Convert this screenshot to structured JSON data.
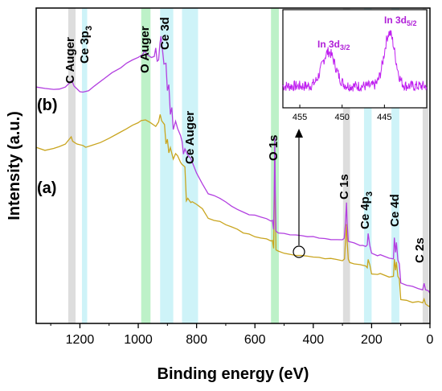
{
  "chart_data": {
    "type": "line",
    "x_axis": {
      "label": "Binding energy (eV)",
      "range": [
        1350,
        0
      ],
      "ticks": [
        1200,
        1000,
        800,
        600,
        400,
        200,
        0
      ],
      "tick_labels": [
        "1200",
        "1000",
        "800",
        "600",
        "400",
        "200",
        "0"
      ],
      "reversed": true
    },
    "y_axis": {
      "label": "Intensity (a.u.)",
      "range": [
        0,
        100
      ],
      "ticks_shown": false
    },
    "series": [
      {
        "name": "(a)",
        "color": "#c9a51f",
        "points": [
          [
            1350,
            56
          ],
          [
            1320,
            55
          ],
          [
            1290,
            55.5
          ],
          [
            1270,
            56
          ],
          [
            1250,
            57
          ],
          [
            1240,
            58
          ],
          [
            1230,
            59
          ],
          [
            1225,
            57.8
          ],
          [
            1210,
            57
          ],
          [
            1190,
            56.4
          ],
          [
            1180,
            56
          ],
          [
            1160,
            56.3
          ],
          [
            1130,
            57.2
          ],
          [
            1100,
            58.6
          ],
          [
            1070,
            60.2
          ],
          [
            1040,
            61.8
          ],
          [
            1020,
            62.8
          ],
          [
            1000,
            63.6
          ],
          [
            990,
            64.2
          ],
          [
            975,
            64.4
          ],
          [
            960,
            63.6
          ],
          [
            940,
            62.6
          ],
          [
            930,
            63.8
          ],
          [
            925,
            66.4
          ],
          [
            920,
            64.2
          ],
          [
            910,
            63.2
          ],
          [
            905,
            56.8
          ],
          [
            900,
            58.4
          ],
          [
            895,
            54.2
          ],
          [
            890,
            55.6
          ],
          [
            880,
            52.2
          ],
          [
            872,
            53.8
          ],
          [
            865,
            53.2
          ],
          [
            855,
            51.2
          ],
          [
            850,
            50.4
          ],
          [
            840,
            49.8
          ],
          [
            835,
            38.8
          ],
          [
            830,
            39.6
          ],
          [
            820,
            38.2
          ],
          [
            815,
            38.6
          ],
          [
            800,
            37.8
          ],
          [
            780,
            36.4
          ],
          [
            760,
            33.2
          ],
          [
            740,
            32.8
          ],
          [
            720,
            32.2
          ],
          [
            700,
            31.4
          ],
          [
            680,
            30.6
          ],
          [
            660,
            29.8
          ],
          [
            640,
            28.8
          ],
          [
            620,
            28.2
          ],
          [
            600,
            27.6
          ],
          [
            580,
            27
          ],
          [
            560,
            26.8
          ],
          [
            545,
            26.2
          ],
          [
            540,
            26.4
          ],
          [
            536,
            23.8
          ],
          [
            534,
            37
          ],
          [
            532,
            51.8
          ],
          [
            530,
            37
          ],
          [
            528,
            23.2
          ],
          [
            520,
            22.8
          ],
          [
            500,
            22.4
          ],
          [
            480,
            21.8
          ],
          [
            460,
            21.6
          ],
          [
            440,
            21.6
          ],
          [
            420,
            21.2
          ],
          [
            400,
            21.2
          ],
          [
            380,
            20.8
          ],
          [
            360,
            20.6
          ],
          [
            340,
            20.6
          ],
          [
            320,
            20.2
          ],
          [
            300,
            20
          ],
          [
            293,
            20.6
          ],
          [
            290,
            25.4
          ],
          [
            286,
            31.6
          ],
          [
            284,
            26.2
          ],
          [
            280,
            20.2
          ],
          [
            275,
            19.4
          ],
          [
            260,
            19
          ],
          [
            240,
            18.6
          ],
          [
            230,
            18.6
          ],
          [
            220,
            18.2
          ],
          [
            215,
            17.8
          ],
          [
            212,
            20.4
          ],
          [
            206,
            18.4
          ],
          [
            200,
            15.8
          ],
          [
            180,
            15.4
          ],
          [
            170,
            15.8
          ],
          [
            140,
            14.6
          ],
          [
            125,
            14.8
          ],
          [
            122,
            20.4
          ],
          [
            118,
            16.8
          ],
          [
            115,
            19.6
          ],
          [
            110,
            14.8
          ],
          [
            105,
            14.2
          ],
          [
            100,
            7.6
          ],
          [
            80,
            7.2
          ],
          [
            60,
            6.8
          ],
          [
            40,
            6.8
          ],
          [
            25,
            6.4
          ],
          [
            20,
            7.8
          ],
          [
            15,
            6.2
          ],
          [
            5,
            5.6
          ],
          [
            0,
            5.4
          ]
        ]
      },
      {
        "name": "(b)",
        "color": "#b23fe0",
        "points": [
          [
            1350,
            74.8
          ],
          [
            1320,
            74.4
          ],
          [
            1290,
            74.2
          ],
          [
            1270,
            74.4
          ],
          [
            1250,
            74.8
          ],
          [
            1235,
            76.2
          ],
          [
            1228,
            76.8
          ],
          [
            1220,
            75.2
          ],
          [
            1200,
            73.6
          ],
          [
            1190,
            73.4
          ],
          [
            1170,
            73.8
          ],
          [
            1150,
            75.2
          ],
          [
            1120,
            77.4
          ],
          [
            1090,
            79.6
          ],
          [
            1060,
            81.2
          ],
          [
            1040,
            82.4
          ],
          [
            1020,
            83.6
          ],
          [
            1000,
            84.4
          ],
          [
            985,
            85.2
          ],
          [
            978,
            86.6
          ],
          [
            970,
            85.2
          ],
          [
            955,
            84.2
          ],
          [
            945,
            84.8
          ],
          [
            940,
            87.2
          ],
          [
            935,
            83.2
          ],
          [
            930,
            83.6
          ],
          [
            926,
            88.6
          ],
          [
            922,
            91
          ],
          [
            918,
            87.6
          ],
          [
            912,
            82.4
          ],
          [
            905,
            82.6
          ],
          [
            900,
            73.8
          ],
          [
            895,
            75.6
          ],
          [
            890,
            66.4
          ],
          [
            885,
            68.4
          ],
          [
            880,
            61.4
          ],
          [
            872,
            64.2
          ],
          [
            865,
            61.8
          ],
          [
            855,
            59.4
          ],
          [
            850,
            57.8
          ],
          [
            845,
            53.8
          ],
          [
            840,
            55.2
          ],
          [
            830,
            53.4
          ],
          [
            820,
            52.4
          ],
          [
            800,
            47.6
          ],
          [
            780,
            44.2
          ],
          [
            760,
            41.2
          ],
          [
            740,
            40.4
          ],
          [
            720,
            39.8
          ],
          [
            700,
            38.4
          ],
          [
            680,
            37.2
          ],
          [
            660,
            36.2
          ],
          [
            640,
            35.2
          ],
          [
            620,
            34.6
          ],
          [
            600,
            34.2
          ],
          [
            580,
            33.8
          ],
          [
            560,
            33.2
          ],
          [
            545,
            32.4
          ],
          [
            540,
            32.6
          ],
          [
            536,
            29.8
          ],
          [
            534,
            41
          ],
          [
            532,
            59.4
          ],
          [
            530,
            41
          ],
          [
            528,
            29.4
          ],
          [
            520,
            28.8
          ],
          [
            500,
            28.4
          ],
          [
            480,
            28.2
          ],
          [
            460,
            28
          ],
          [
            440,
            27.8
          ],
          [
            420,
            27.6
          ],
          [
            400,
            27.4
          ],
          [
            380,
            27.2
          ],
          [
            360,
            26.8
          ],
          [
            340,
            26.6
          ],
          [
            320,
            26.6
          ],
          [
            300,
            26.4
          ],
          [
            294,
            27
          ],
          [
            290,
            31.2
          ],
          [
            286,
            38.2
          ],
          [
            284,
            32.2
          ],
          [
            280,
            26.2
          ],
          [
            275,
            25.8
          ],
          [
            260,
            25.4
          ],
          [
            240,
            24.8
          ],
          [
            230,
            24.6
          ],
          [
            220,
            24.4
          ],
          [
            215,
            24.8
          ],
          [
            212,
            28.4
          ],
          [
            206,
            24.8
          ],
          [
            200,
            22.2
          ],
          [
            180,
            21.6
          ],
          [
            170,
            21.8
          ],
          [
            140,
            20.8
          ],
          [
            125,
            20.6
          ],
          [
            122,
            27.2
          ],
          [
            118,
            22.6
          ],
          [
            115,
            25.6
          ],
          [
            110,
            20.2
          ],
          [
            105,
            18.8
          ],
          [
            100,
            12.8
          ],
          [
            80,
            12.2
          ],
          [
            60,
            11.6
          ],
          [
            40,
            11.2
          ],
          [
            25,
            10.8
          ],
          [
            20,
            12.6
          ],
          [
            15,
            10.6
          ],
          [
            5,
            10.2
          ],
          [
            0,
            9.6
          ]
        ]
      }
    ],
    "bands": [
      {
        "label": "C Auger",
        "from": 1240,
        "to": 1215,
        "color": "#d9d9d9"
      },
      {
        "label": "Ce 3p3",
        "from": 1193,
        "to": 1175,
        "color": "#c9f2f7"
      },
      {
        "label": "O Auger",
        "from": 990,
        "to": 958,
        "color": "#b6f0c2"
      },
      {
        "label": "Ce 3d",
        "from": 925,
        "to": 880,
        "color": "#c9f2f7"
      },
      {
        "label": "Ce Auger",
        "from": 850,
        "to": 795,
        "color": "#c9f2f7"
      },
      {
        "label": "O 1s",
        "from": 545,
        "to": 518,
        "color": "#b6f0c2"
      },
      {
        "label": "C 1s",
        "from": 298,
        "to": 274,
        "color": "#d9d9d9"
      },
      {
        "label": "Ce 4p3",
        "from": 226,
        "to": 200,
        "color": "#c9f2f7"
      },
      {
        "label": "Ce 4d",
        "from": 132,
        "to": 105,
        "color": "#c9f2f7"
      },
      {
        "label": "C 2s",
        "from": 25,
        "to": 5,
        "color": "#d9d9d9"
      }
    ],
    "labels": {
      "series_a": "(a)",
      "series_b": "(b)",
      "c_auger": "C Auger",
      "ce3p_main": "Ce 3p",
      "ce3p_sub": "3",
      "o_auger": "O Auger",
      "ce3d": "Ce 3d",
      "ce_auger": "Ce Auger",
      "o1s": "O 1s",
      "c1s": "C 1s",
      "ce4p_main": "Ce 4p",
      "ce4p_sub": "3",
      "ce4d": "Ce 4d",
      "c2s": "C 2s"
    },
    "inset": {
      "x_range": [
        457,
        440
      ],
      "ticks": [
        455,
        450,
        445
      ],
      "tick_labels": [
        "455",
        "450",
        "445"
      ],
      "label_3d32_main": "In 3d",
      "label_3d32_sub": "3/2",
      "label_3d52_main": "In 3d",
      "label_3d52_sub": "5/2",
      "peaks": [
        {
          "center": 451.6,
          "width": 1.1,
          "height": 0.5
        },
        {
          "center": 444.4,
          "width": 0.9,
          "height": 0.78
        }
      ],
      "color": "#c020f0",
      "marker_x": 445
    }
  }
}
